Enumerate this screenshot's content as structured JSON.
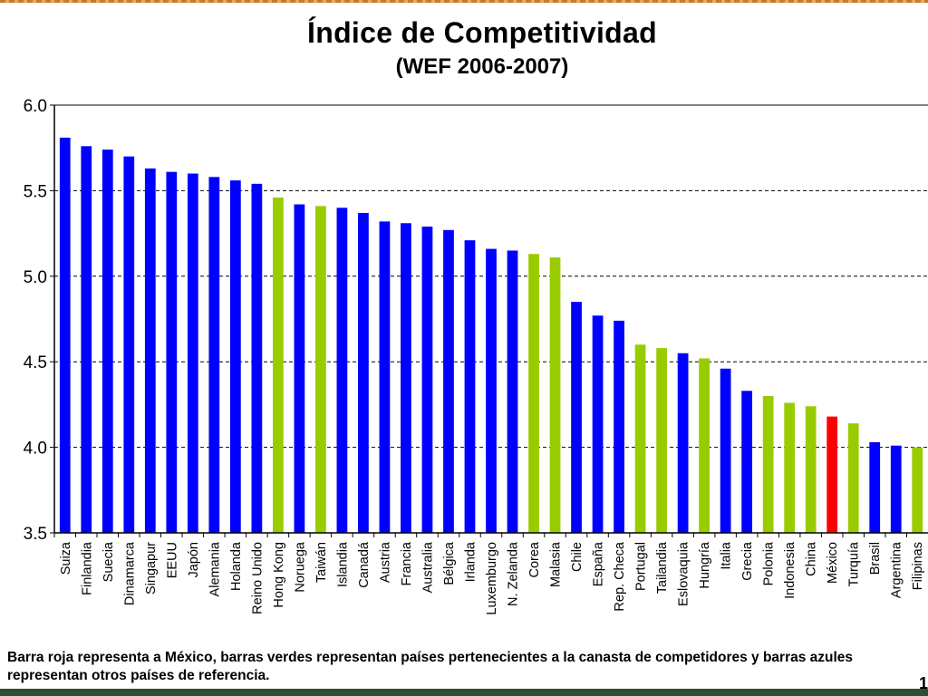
{
  "chart_data": {
    "type": "bar",
    "title": "Índice de Competitividad",
    "subtitle": "(WEF 2006-2007)",
    "xlabel": "",
    "ylabel": "",
    "ylim": [
      3.5,
      6.0
    ],
    "yticks": [
      "3.5",
      "4.0",
      "4.5",
      "5.0",
      "5.5",
      "6.0"
    ],
    "grid": "dashed horizontal at 4.0, 4.5, 5.0, 5.5",
    "colors": {
      "otros": "#0000ff",
      "competidores": "#99cc00",
      "mexico": "#ff0000"
    },
    "categories": [
      "Suiza",
      "Finlandia",
      "Suecia",
      "Dinamarca",
      "Singapur",
      "EEUU",
      "Japón",
      "Alemania",
      "Holanda",
      "Reino Unido",
      "Hong Kong",
      "Noruega",
      "Taiwán",
      "Islandia",
      "Canadá",
      "Austria",
      "Francia",
      "Australia",
      "Bélgica",
      "Irlanda",
      "Luxemburgo",
      "N. Zelanda",
      "Corea",
      "Malasia",
      "Chile",
      "España",
      "Rep. Checa",
      "Portugal",
      "Tailandia",
      "Eslovaquia",
      "Hungría",
      "Italia",
      "Grecia",
      "Polonia",
      "Indonesia",
      "China",
      "México",
      "Turquía",
      "Brasil",
      "Argentina",
      "Filipinas"
    ],
    "values": [
      5.81,
      5.76,
      5.74,
      5.7,
      5.63,
      5.61,
      5.6,
      5.58,
      5.56,
      5.54,
      5.46,
      5.42,
      5.41,
      5.4,
      5.37,
      5.32,
      5.31,
      5.29,
      5.27,
      5.21,
      5.16,
      5.15,
      5.13,
      5.11,
      4.85,
      4.77,
      4.74,
      4.6,
      4.58,
      4.55,
      4.52,
      4.46,
      4.33,
      4.3,
      4.26,
      4.24,
      4.18,
      4.14,
      4.03,
      4.01,
      4.0
    ],
    "groups": [
      "otros",
      "otros",
      "otros",
      "otros",
      "otros",
      "otros",
      "otros",
      "otros",
      "otros",
      "otros",
      "competidores",
      "otros",
      "competidores",
      "otros",
      "otros",
      "otros",
      "otros",
      "otros",
      "otros",
      "otros",
      "otros",
      "otros",
      "competidores",
      "competidores",
      "otros",
      "otros",
      "otros",
      "competidores",
      "competidores",
      "otros",
      "competidores",
      "otros",
      "otros",
      "competidores",
      "competidores",
      "competidores",
      "mexico",
      "competidores",
      "otros",
      "otros",
      "competidores"
    ]
  },
  "caption": "Barra roja representa a México, barras verdes representan países pertenecientes a la canasta de competidores y barras azules representan otros países de referencia.",
  "page_number": "1"
}
